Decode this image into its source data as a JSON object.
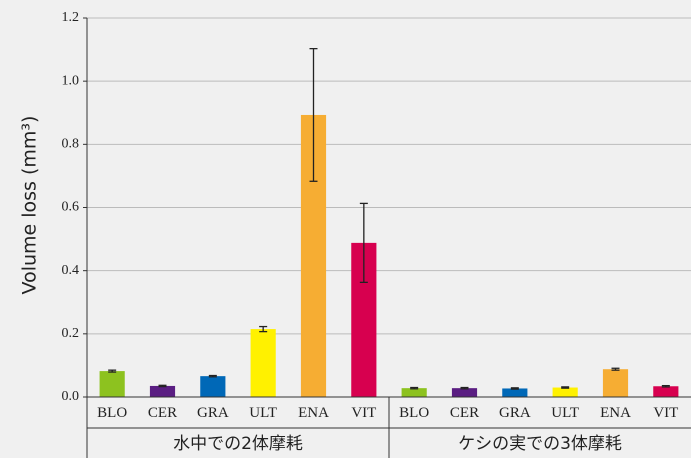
{
  "chart_data": {
    "type": "bar",
    "ylabel": "Volume loss (mm³)",
    "ylim": [
      0,
      1.2
    ],
    "yticks": [
      {
        "value": 0,
        "label": "0.0"
      },
      0.2,
      0.4,
      0.6,
      0.8,
      {
        "value": 1,
        "label": "1.0"
      },
      1.2
    ],
    "grid": true,
    "colors": [
      "#8dc21f",
      "#5a1e82",
      "#0068b7",
      "#fff100",
      "#f6ad33",
      "#d7004f"
    ],
    "groups": [
      {
        "name": "水中での2体摩耗",
        "categories": [
          "BLO",
          "CER",
          "GRA",
          "ULT",
          "ENA",
          "VIT"
        ],
        "values": [
          0.082,
          0.035,
          0.066,
          0.215,
          0.893,
          0.488
        ],
        "errors": [
          0.003,
          0.002,
          0.002,
          0.008,
          0.21,
          0.125
        ]
      },
      {
        "name": "ケシの実での3体摩耗",
        "categories": [
          "BLO",
          "CER",
          "GRA",
          "ULT",
          "ENA",
          "VIT"
        ],
        "values": [
          0.028,
          0.028,
          0.027,
          0.03,
          0.088,
          0.034
        ],
        "errors": [
          0.002,
          0.002,
          0.002,
          0.002,
          0.003,
          0.002
        ]
      }
    ]
  }
}
